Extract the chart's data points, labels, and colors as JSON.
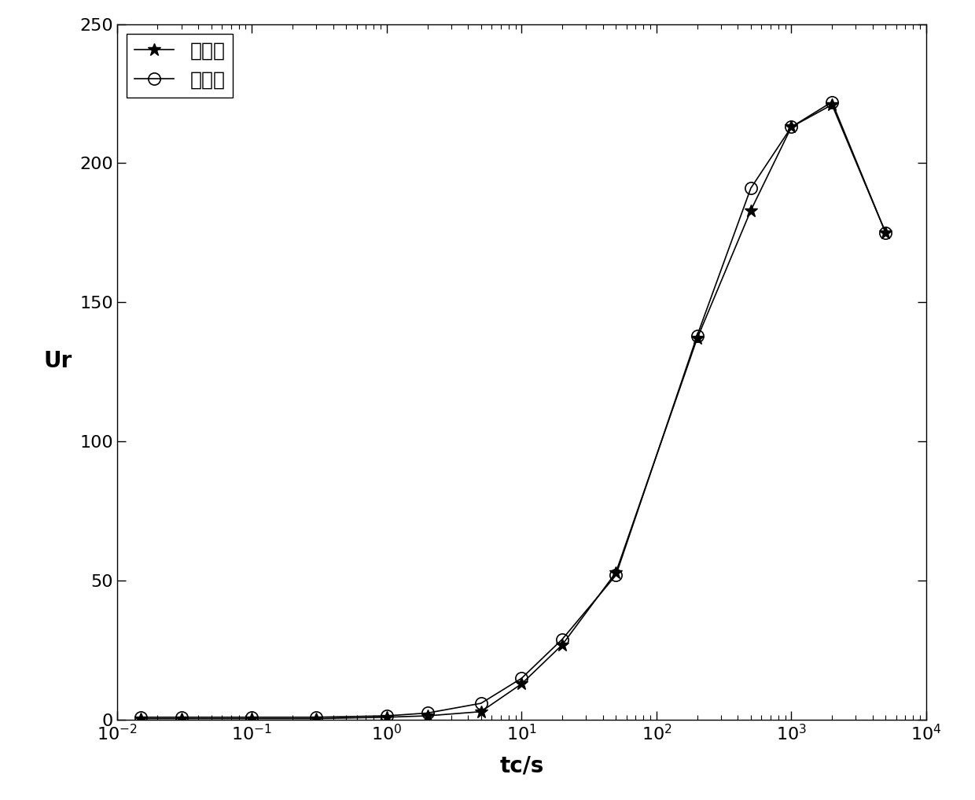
{
  "measured_x": [
    0.015,
    0.03,
    0.1,
    0.3,
    1.0,
    2.0,
    5.0,
    10.0,
    20.0,
    50.0,
    200.0,
    500.0,
    1000.0,
    2000.0,
    5000.0
  ],
  "measured_y": [
    0.5,
    0.5,
    0.5,
    0.5,
    1.0,
    1.5,
    3.0,
    13.0,
    27.0,
    53.0,
    137.0,
    183.0,
    213.0,
    221.0,
    175.0
  ],
  "calculated_x": [
    0.015,
    0.03,
    0.1,
    0.3,
    1.0,
    2.0,
    5.0,
    10.0,
    20.0,
    50.0,
    200.0,
    500.0,
    1000.0,
    2000.0,
    5000.0
  ],
  "calculated_y": [
    1.0,
    1.0,
    1.0,
    1.0,
    1.5,
    2.5,
    6.0,
    15.0,
    29.0,
    52.0,
    138.0,
    191.0,
    213.0,
    222.0,
    175.0
  ],
  "xlabel": "tc/s",
  "ylabel": "Ur",
  "xlim": [
    0.01,
    10000
  ],
  "ylim": [
    0,
    250
  ],
  "yticks": [
    0,
    50,
    100,
    150,
    200,
    250
  ],
  "legend_measured": "测量值",
  "legend_calculated": "计算值",
  "line_color": "#000000",
  "background_color": "#ffffff"
}
